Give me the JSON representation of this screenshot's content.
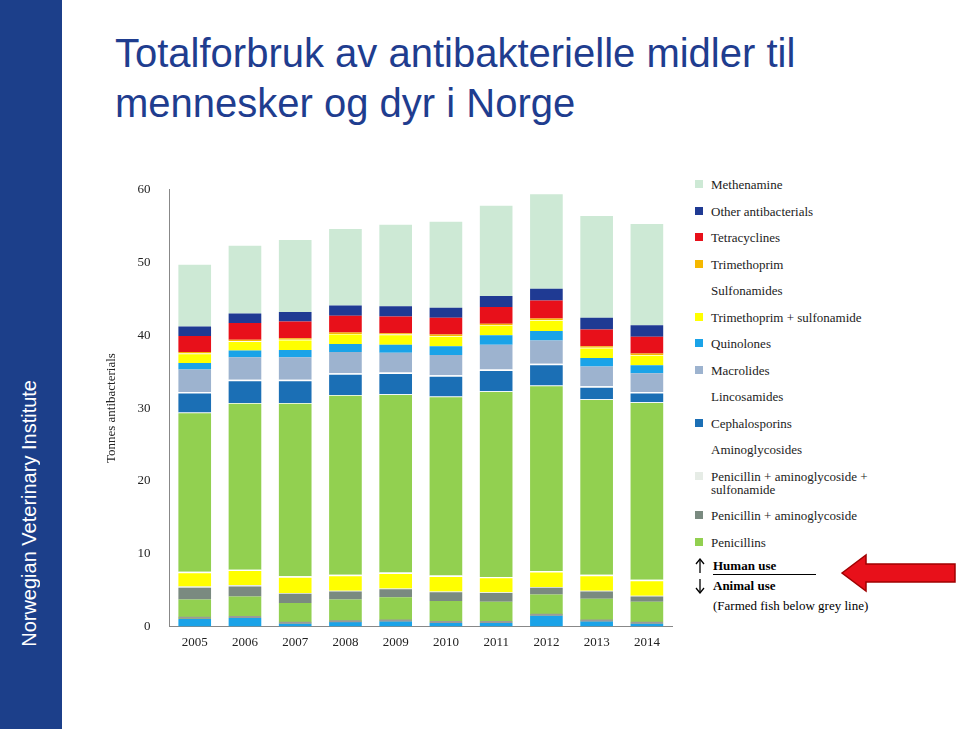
{
  "chart_data": {
    "type": "bar",
    "title": "Totalforbruk av antibakterielle midler til mennesker og dyr i Norge",
    "brand": "Norwegian Veterinary Institute",
    "y_label": "Tonnes antibacterials",
    "categories": [
      "2005",
      "2006",
      "2007",
      "2008",
      "2009",
      "2010",
      "2011",
      "2012",
      "2013",
      "2014"
    ],
    "ylim": [
      0,
      60
    ],
    "yticks": [
      0,
      10,
      20,
      30,
      40,
      50,
      60
    ],
    "stacked": true,
    "grid": false,
    "legend": "right",
    "series": [
      {
        "name": "Methenamine",
        "color": "#cde9d5",
        "values": [
          8.5,
          9.3,
          9.9,
          10.5,
          11.2,
          11.8,
          12.4,
          13.0,
          14.0,
          13.9
        ]
      },
      {
        "name": "Other antibacterials",
        "color": "#1f3a93",
        "values": [
          1.3,
          1.3,
          1.3,
          1.4,
          1.4,
          1.4,
          1.5,
          1.6,
          1.6,
          1.6
        ]
      },
      {
        "name": "Tetracyclines",
        "color": "#e8101a",
        "values": [
          2.2,
          2.3,
          2.3,
          2.3,
          2.3,
          2.3,
          2.3,
          2.5,
          2.3,
          2.3
        ]
      },
      {
        "name": "Trimethoprim",
        "color": "#f5b800",
        "values": [
          0.2,
          0.2,
          0.2,
          0.2,
          0.2,
          0.2,
          0.2,
          0.2,
          0.2,
          0.2
        ]
      },
      {
        "name": "Sulfonamides",
        "color": "#ffffff",
        "values": [
          0.1,
          0.1,
          0.1,
          0.1,
          0.1,
          0.1,
          0.1,
          0.1,
          0.1,
          0.1
        ]
      },
      {
        "name": "Trimethoprim + sulfonamide",
        "color": "#ffff00",
        "values": [
          1.2,
          1.2,
          1.3,
          1.3,
          1.3,
          1.3,
          1.3,
          1.4,
          1.3,
          1.3
        ]
      },
      {
        "name": "Quinolones",
        "color": "#1aa3e8",
        "values": [
          0.9,
          0.9,
          1.0,
          1.1,
          1.1,
          1.2,
          1.3,
          1.3,
          1.2,
          1.1
        ]
      },
      {
        "name": "Macrolides",
        "color": "#9db3cf",
        "values": [
          3.1,
          3.1,
          3.1,
          2.9,
          2.7,
          2.8,
          3.4,
          3.2,
          2.7,
          2.6
        ]
      },
      {
        "name": "Lincosamides",
        "color": "#ffffff",
        "values": [
          0.2,
          0.2,
          0.2,
          0.2,
          0.2,
          0.2,
          0.2,
          0.2,
          0.2,
          0.2
        ]
      },
      {
        "name": "Cephalosporins",
        "color": "#1b6fb5",
        "values": [
          2.6,
          3.0,
          3.0,
          2.8,
          2.8,
          2.7,
          2.8,
          2.8,
          1.6,
          1.2
        ]
      },
      {
        "name": "Aminoglycosides",
        "color": "#ffffff",
        "values": [
          0.1,
          0.1,
          0.1,
          0.1,
          0.1,
          0.1,
          0.1,
          0.1,
          0.1,
          0.1
        ]
      },
      {
        "name": "Penicillin + aminoglycoside + sulfonamide",
        "color": "#e6ece6",
        "values": [
          0,
          0,
          0,
          0,
          0,
          0,
          0,
          0,
          0,
          0
        ]
      },
      {
        "name": "Penicillin + aminoglycoside",
        "color": "#7a8a80",
        "values": [
          0,
          0,
          0,
          0,
          0,
          0,
          0,
          0,
          0,
          0
        ]
      },
      {
        "name": "Penicillins",
        "color": "#92d050",
        "values": [
          21.8,
          22.8,
          23.7,
          24.6,
          24.4,
          24.5,
          25.4,
          25.4,
          24.0,
          24.3
        ]
      }
    ],
    "animal_series": [
      {
        "name": "Quinolones",
        "values": [
          1.0,
          1.2,
          0.4,
          0.6,
          0.7,
          0.5,
          0.5,
          1.5,
          0.7,
          0.4
        ]
      },
      {
        "name": "Penicillins",
        "values": [
          2.7,
          2.9,
          2.8,
          3.1,
          3.3,
          3.0,
          2.9,
          2.9,
          3.1,
          3.0
        ]
      },
      {
        "name": "Penicillin + aminoglycoside",
        "values": [
          1.6,
          1.4,
          1.3,
          1.1,
          1.1,
          1.2,
          1.2,
          0.9,
          1.0,
          0.7
        ]
      },
      {
        "name": "Penicillin + aminoglycoside + sulfonamide",
        "values": [
          0.2,
          0.2,
          0.1,
          0.1,
          0.1,
          0.1,
          0.1,
          0.1,
          0.1,
          0.1
        ]
      },
      {
        "name": "Trimethoprim + sulfonamide",
        "values": [
          1.8,
          1.9,
          2.1,
          2.0,
          2.0,
          2.0,
          1.9,
          2.0,
          2.0,
          2.0
        ]
      },
      {
        "name": "Aminoglycosides",
        "values": [
          0.2,
          0.2,
          0.2,
          0.2,
          0.2,
          0.2,
          0.2,
          0.2,
          0.2,
          0.2
        ]
      }
    ],
    "farmed_fish": {
      "values": [
        1.2,
        1.3,
        0.5,
        0.7,
        0.8,
        0.6,
        0.6,
        1.6,
        0.8,
        0.5
      ],
      "color": "#9a9a9a"
    },
    "human_label": "Human use",
    "animal_label": "Animal use",
    "farmed_fish_label": "(Farmed fish below grey line)"
  }
}
